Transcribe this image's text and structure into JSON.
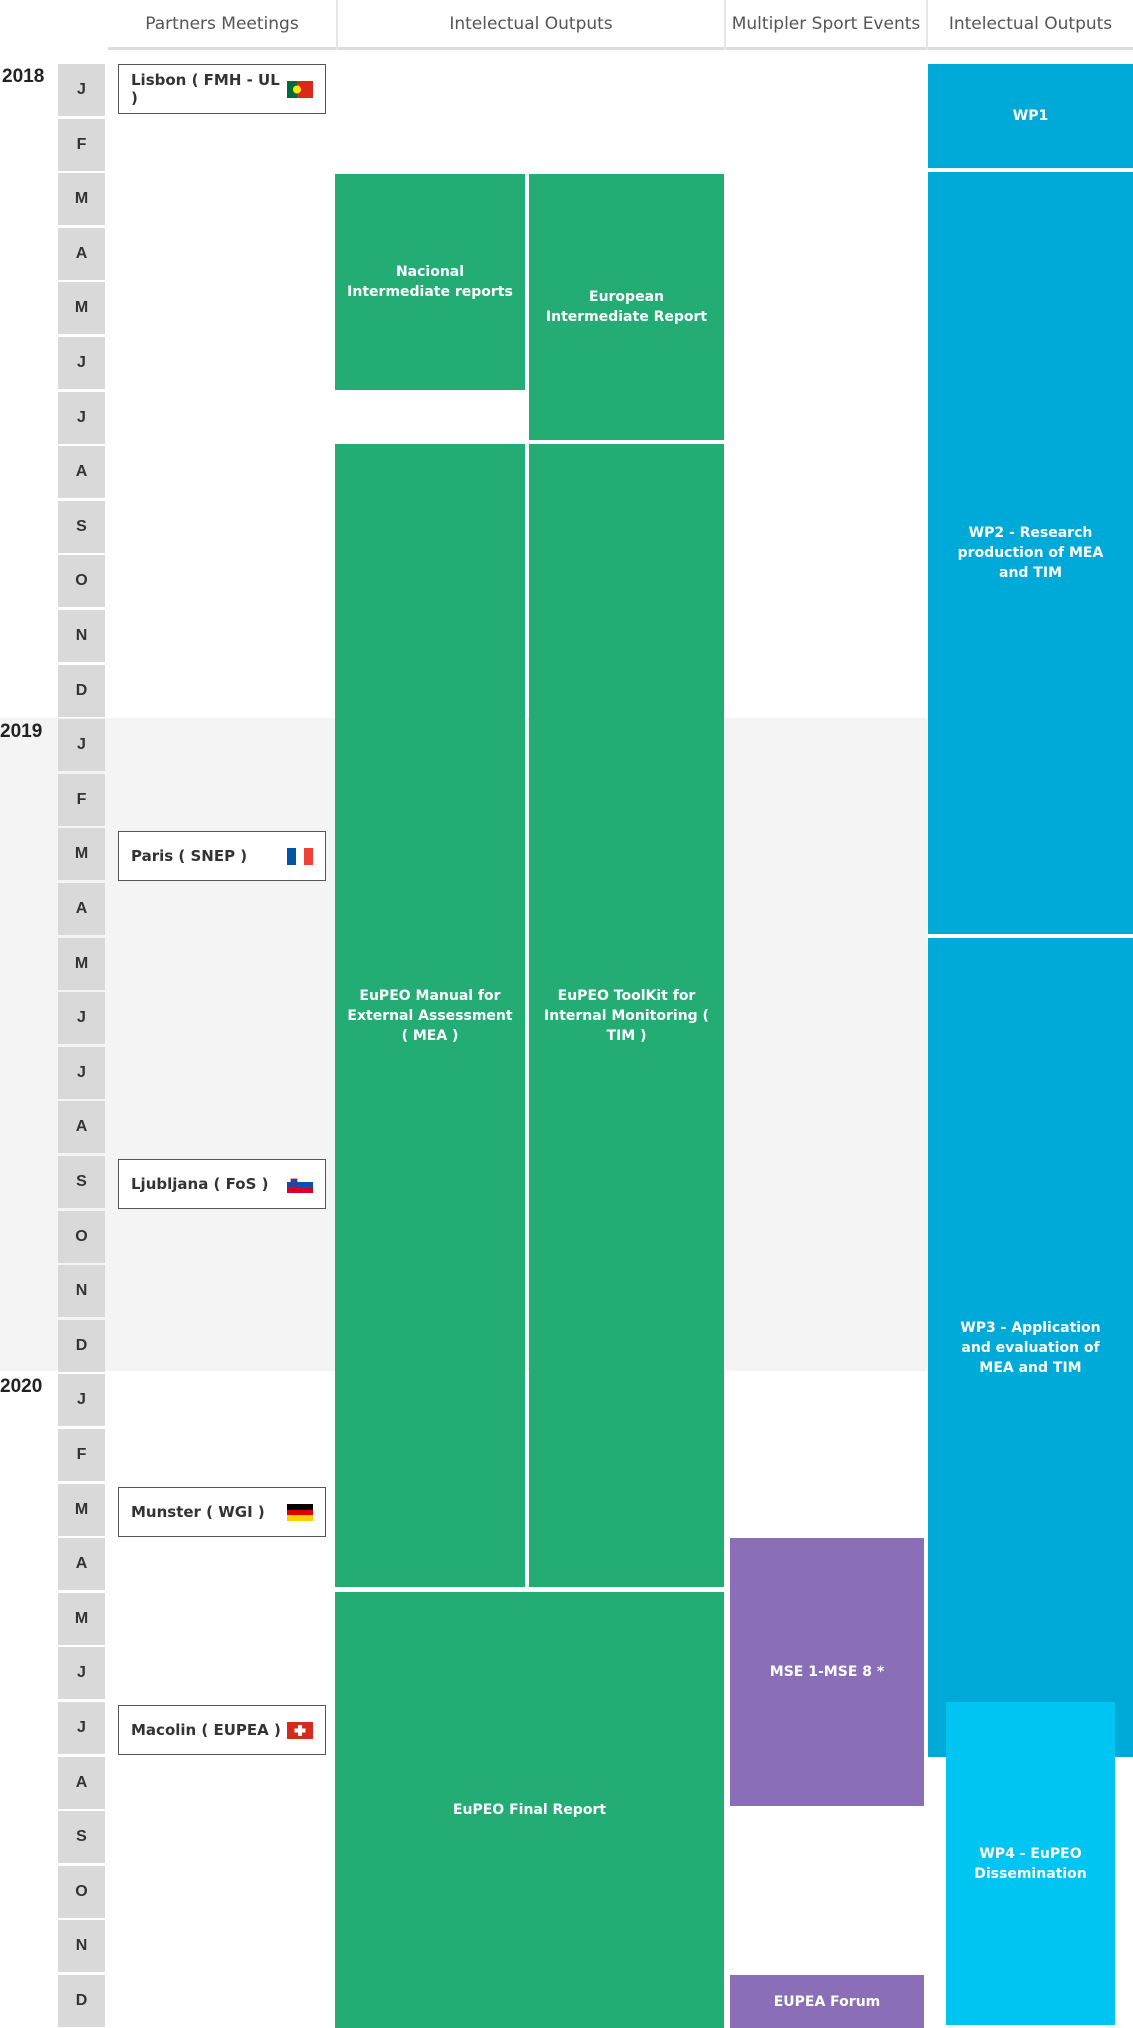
{
  "headers": {
    "partners": "Partners Meetings",
    "outputs": "Intelectual Outputs",
    "events": "Multipler Sport Events",
    "wp": "Intelectual Outputs"
  },
  "years": [
    "2018",
    "2019",
    "2020"
  ],
  "months": [
    "J",
    "F",
    "M",
    "A",
    "M",
    "J",
    "J",
    "A",
    "S",
    "O",
    "N",
    "D",
    "J",
    "F",
    "M",
    "A",
    "M",
    "J",
    "J",
    "A",
    "S",
    "O",
    "N",
    "D",
    "J",
    "F",
    "M",
    "A",
    "M",
    "J",
    "J",
    "A",
    "S",
    "O",
    "N",
    "D"
  ],
  "meetings": [
    {
      "label": "Lisbon ( FMH - UL )",
      "flag": "portugal-flag-icon"
    },
    {
      "label": "Paris ( SNEP )",
      "flag": "france-flag-icon"
    },
    {
      "label": "Ljubljana ( FoS )",
      "flag": "slovenia-flag-icon"
    },
    {
      "label": "Munster ( WGI )",
      "flag": "germany-flag-icon"
    },
    {
      "label": "Macolin ( EUPEA )",
      "flag": "switzerland-flag-icon"
    }
  ],
  "outputs": {
    "national": "Nacional Intermediate reports",
    "european": "European Intermediate Report",
    "mea": "EuPEO Manual for External Assessment ( MEA )",
    "tim": "EuPEO ToolKit for Internal Monitoring ( TIM )",
    "final": "EuPEO Final Report"
  },
  "events": {
    "mse": "MSE 1-MSE 8 *",
    "forum": "EUPEA Forum"
  },
  "workpackages": {
    "wp1": "WP1",
    "wp2": "WP2 - Research production of MEA and TIM",
    "wp3": "WP3 - Application and evaluation of MEA and TIM",
    "wp4": "WP4 - EuPEO Dissemination"
  },
  "colors": {
    "green": "#23ad75",
    "blue": "#00aad8",
    "lightblue": "#00c5f2",
    "purple": "#8a6fb8",
    "band": "#f4f4f4"
  }
}
